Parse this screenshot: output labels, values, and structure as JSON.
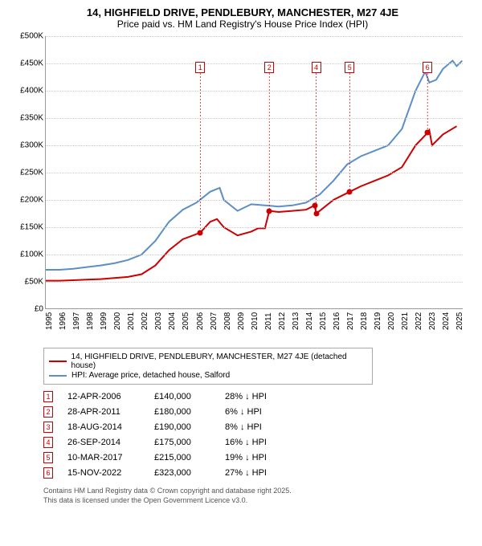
{
  "title": "14, HIGHFIELD DRIVE, PENDLEBURY, MANCHESTER, M27 4JE",
  "subtitle": "Price paid vs. HM Land Registry's House Price Index (HPI)",
  "chart": {
    "type": "line",
    "xlim": [
      1995,
      2025.5
    ],
    "ylim": [
      0,
      500000
    ],
    "ytick_step": 50000,
    "ytick_labels": [
      "£0",
      "£50K",
      "£100K",
      "£150K",
      "£200K",
      "£250K",
      "£300K",
      "£350K",
      "£400K",
      "£450K",
      "£500K"
    ],
    "xtick_step": 1,
    "xtick_labels": [
      "1995",
      "1996",
      "1997",
      "1998",
      "1999",
      "2000",
      "2001",
      "2002",
      "2003",
      "2004",
      "2005",
      "2006",
      "2007",
      "2008",
      "2009",
      "2010",
      "2011",
      "2012",
      "2013",
      "2014",
      "2015",
      "2016",
      "2017",
      "2018",
      "2019",
      "2020",
      "2021",
      "2022",
      "2023",
      "2024",
      "2025"
    ],
    "background_color": "#ffffff",
    "grid_color": "#cccccc",
    "series": [
      {
        "name": "price_paid",
        "color": "#cc0000",
        "width": 2,
        "points": [
          [
            1995,
            52000
          ],
          [
            1996,
            52000
          ],
          [
            1997,
            53000
          ],
          [
            1998,
            54000
          ],
          [
            1999,
            55000
          ],
          [
            2000,
            57000
          ],
          [
            2001,
            59000
          ],
          [
            2002,
            64000
          ],
          [
            2003,
            80000
          ],
          [
            2004,
            108000
          ],
          [
            2005,
            128000
          ],
          [
            2006.28,
            140000
          ],
          [
            2007,
            160000
          ],
          [
            2007.5,
            165000
          ],
          [
            2008,
            150000
          ],
          [
            2009,
            135000
          ],
          [
            2010,
            142000
          ],
          [
            2010.5,
            148000
          ],
          [
            2011,
            148000
          ],
          [
            2011.32,
            180000
          ],
          [
            2012,
            178000
          ],
          [
            2013,
            180000
          ],
          [
            2014,
            182000
          ],
          [
            2014.63,
            190000
          ],
          [
            2014.74,
            175000
          ],
          [
            2015,
            180000
          ],
          [
            2016,
            200000
          ],
          [
            2017.19,
            215000
          ],
          [
            2018,
            225000
          ],
          [
            2019,
            235000
          ],
          [
            2020,
            245000
          ],
          [
            2021,
            260000
          ],
          [
            2022,
            300000
          ],
          [
            2022.87,
            323000
          ],
          [
            2023,
            328000
          ],
          [
            2023.2,
            300000
          ],
          [
            2024,
            320000
          ],
          [
            2025,
            335000
          ]
        ]
      },
      {
        "name": "hpi",
        "color": "#5b8fc6",
        "width": 2,
        "points": [
          [
            1995,
            72000
          ],
          [
            1996,
            72000
          ],
          [
            1997,
            74000
          ],
          [
            1998,
            77000
          ],
          [
            1999,
            80000
          ],
          [
            2000,
            84000
          ],
          [
            2001,
            90000
          ],
          [
            2002,
            100000
          ],
          [
            2003,
            125000
          ],
          [
            2004,
            160000
          ],
          [
            2005,
            182000
          ],
          [
            2006,
            195000
          ],
          [
            2007,
            215000
          ],
          [
            2007.7,
            222000
          ],
          [
            2008,
            200000
          ],
          [
            2009,
            180000
          ],
          [
            2010,
            192000
          ],
          [
            2011,
            190000
          ],
          [
            2012,
            188000
          ],
          [
            2013,
            190000
          ],
          [
            2014,
            195000
          ],
          [
            2015,
            210000
          ],
          [
            2016,
            235000
          ],
          [
            2017,
            265000
          ],
          [
            2018,
            280000
          ],
          [
            2019,
            290000
          ],
          [
            2020,
            300000
          ],
          [
            2021,
            330000
          ],
          [
            2022,
            400000
          ],
          [
            2022.7,
            435000
          ],
          [
            2023,
            415000
          ],
          [
            2023.5,
            420000
          ],
          [
            2024,
            440000
          ],
          [
            2024.7,
            455000
          ],
          [
            2025,
            445000
          ],
          [
            2025.4,
            455000
          ]
        ]
      }
    ],
    "markers": [
      {
        "n": "1",
        "x": 2006.28,
        "y": 140000,
        "box_y": 32
      },
      {
        "n": "2",
        "x": 2011.32,
        "y": 180000,
        "box_y": 32
      },
      {
        "n": "3",
        "x": 2014.63,
        "y": 190000,
        "box_y": null
      },
      {
        "n": "4",
        "x": 2014.74,
        "y": 175000,
        "box_y": 32
      },
      {
        "n": "5",
        "x": 2017.19,
        "y": 215000,
        "box_y": 32
      },
      {
        "n": "6",
        "x": 2022.87,
        "y": 323000,
        "box_y": 32
      }
    ],
    "marker_dot_color": "#cc0000",
    "marker_box_border": "#cc0000"
  },
  "legend": {
    "items": [
      {
        "color": "#cc0000",
        "label": "14, HIGHFIELD DRIVE, PENDLEBURY, MANCHESTER, M27 4JE (detached house)"
      },
      {
        "color": "#5b8fc6",
        "label": "HPI: Average price, detached house, Salford"
      }
    ]
  },
  "events": [
    {
      "n": "1",
      "date": "12-APR-2006",
      "price": "£140,000",
      "diff": "28% ↓ HPI"
    },
    {
      "n": "2",
      "date": "28-APR-2011",
      "price": "£180,000",
      "diff": "6% ↓ HPI"
    },
    {
      "n": "3",
      "date": "18-AUG-2014",
      "price": "£190,000",
      "diff": "8% ↓ HPI"
    },
    {
      "n": "4",
      "date": "26-SEP-2014",
      "price": "£175,000",
      "diff": "16% ↓ HPI"
    },
    {
      "n": "5",
      "date": "10-MAR-2017",
      "price": "£215,000",
      "diff": "19% ↓ HPI"
    },
    {
      "n": "6",
      "date": "15-NOV-2022",
      "price": "£323,000",
      "diff": "27% ↓ HPI"
    }
  ],
  "footer_line1": "Contains HM Land Registry data © Crown copyright and database right 2025.",
  "footer_line2": "This data is licensed under the Open Government Licence v3.0."
}
